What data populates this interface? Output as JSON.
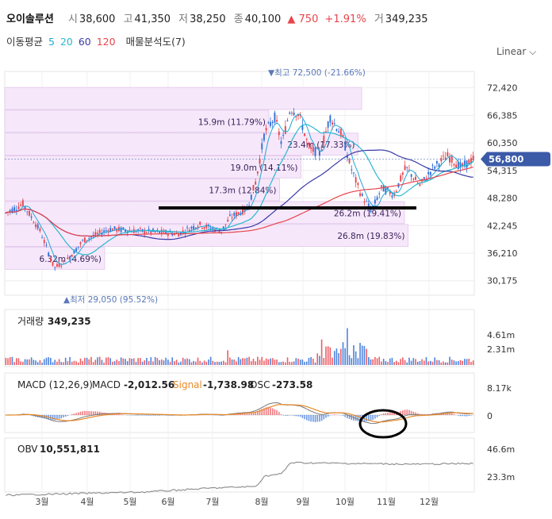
{
  "header": {
    "name": "오이솔루션",
    "open_label": "시",
    "open": "38,600",
    "high_label": "고",
    "high": "41,350",
    "low_label": "저",
    "low": "38,250",
    "close_label": "종",
    "close": "40,100",
    "change": "▲ 750",
    "change_pct": "+1.91%",
    "volume_label": "거",
    "volume": "349,235"
  },
  "ma_bar": {
    "label": "이동평균",
    "periods": [
      "5",
      "20",
      "60",
      "120"
    ],
    "colors": [
      "#1fa8d8",
      "#2ab8d0",
      "#3a3aa8",
      "#e8444c"
    ],
    "profile_label": "매물분석도(7)"
  },
  "scale_label": "Linear",
  "chart_data": {
    "type": "candlestick",
    "price_axis": {
      "ticks": [
        "72,420",
        "66,385",
        "60,350",
        "54,315",
        "48,280",
        "42,245",
        "36,210",
        "30,175"
      ],
      "ylim": [
        27000,
        76000
      ]
    },
    "current_price": "56,800",
    "max_label": "▼최고 72,500 (-21.66%)",
    "min_label": "▲최저 29,050 (95.52%)",
    "x_labels": [
      "3월",
      "4월",
      "5월",
      "6월",
      "7월",
      "8월",
      "9월",
      "10월",
      "11월",
      "12월"
    ],
    "volume_profile": [
      {
        "label": "",
        "low": 67500,
        "high": 72500,
        "fill": 1.0
      },
      {
        "label": "15.9m (11.79%)",
        "low": 62500,
        "high": 67500,
        "fill": 0.74
      },
      {
        "label": "23.4m (17.33%)",
        "low": 57500,
        "high": 62500,
        "fill": 0.99
      },
      {
        "label": "19.0m (14.11%)",
        "low": 52500,
        "high": 57500,
        "fill": 0.83
      },
      {
        "label": "17.3m (12.84%)",
        "low": 47500,
        "high": 52500,
        "fill": 0.77
      },
      {
        "label": "26.2m (19.41%)",
        "low": 42500,
        "high": 47500,
        "fill": 1.12
      },
      {
        "label": "26.8m (19.83%)",
        "low": 37500,
        "high": 42500,
        "fill": 1.13
      },
      {
        "label": "6.32m (4.69%)",
        "low": 32500,
        "high": 37500,
        "fill": 0.28
      }
    ],
    "volume_panel": {
      "label": "거래량",
      "value": "349,235",
      "ticks": [
        "4.61m",
        "2.31m"
      ]
    },
    "macd_panel": {
      "label": "MACD (12,26,9)",
      "macd_label": "MACD",
      "macd": "-2,012.56",
      "signal_label": "Signal",
      "signal": "-1,738.98",
      "osc_label": "OSC",
      "osc": "-273.58",
      "ticks": [
        "8.17k",
        "0"
      ]
    },
    "obv_panel": {
      "label": "OBV",
      "value": "10,551,811",
      "ticks": [
        "46.6m",
        "23.3m"
      ]
    }
  }
}
